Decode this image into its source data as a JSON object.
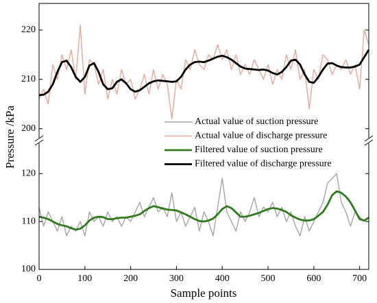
{
  "chart_data": {
    "type": "line",
    "xlabel": "Sample points",
    "ylabel": "Pressure /kPa",
    "xlim": [
      0,
      720
    ],
    "xticks": [
      0,
      100,
      200,
      300,
      400,
      500,
      600,
      700
    ],
    "ylim": [
      100,
      126.9
    ],
    "yticks": [
      100,
      110,
      120
    ],
    "y2lim": [
      197.6,
      225.4
    ],
    "y2ticks": [
      200,
      210,
      220
    ],
    "legend": "right",
    "x": [
      0,
      10,
      20,
      30,
      40,
      50,
      60,
      70,
      80,
      90,
      100,
      110,
      120,
      130,
      140,
      150,
      160,
      170,
      180,
      190,
      200,
      210,
      220,
      230,
      240,
      250,
      260,
      270,
      280,
      290,
      300,
      310,
      320,
      330,
      340,
      350,
      360,
      370,
      380,
      390,
      400,
      410,
      420,
      430,
      440,
      450,
      460,
      470,
      480,
      490,
      500,
      510,
      520,
      530,
      540,
      550,
      560,
      570,
      580,
      590,
      600,
      610,
      620,
      630,
      640,
      650,
      660,
      670,
      680,
      690,
      700,
      710,
      720
    ],
    "series": [
      {
        "name": "Actual value of suction pressure",
        "color": "#a3a3a3",
        "width": 1.4,
        "values": [
          113,
          109,
          112,
          110,
          108,
          111,
          107,
          109,
          108,
          110,
          107,
          112,
          110,
          111,
          109,
          112,
          110,
          111,
          109,
          111,
          110,
          112,
          114,
          111,
          113,
          115,
          112,
          113,
          111,
          116,
          110,
          112,
          109,
          111,
          113,
          108,
          112,
          110,
          107,
          113,
          119,
          112,
          110,
          108,
          112,
          110,
          112,
          115,
          111,
          113,
          112,
          114,
          111,
          113,
          110,
          112,
          109,
          107,
          111,
          108,
          110,
          112,
          114,
          118,
          119,
          120,
          114,
          112,
          109,
          112,
          111,
          110,
          111
        ]
      },
      {
        "name": "Actual value of discharge pressure",
        "color": "#e2a99b",
        "width": 1.4,
        "axis": "y2",
        "values": [
          206,
          208,
          205,
          213,
          210,
          215,
          212,
          216,
          210,
          221,
          207,
          214,
          213,
          209,
          212,
          206,
          210,
          207,
          212,
          209,
          210,
          206,
          208,
          211,
          207,
          212,
          208,
          211,
          209,
          202,
          210,
          208,
          214,
          212,
          216,
          213,
          212,
          215,
          214,
          217,
          214,
          216,
          212,
          215,
          211,
          213,
          211,
          214,
          212,
          210,
          213,
          209,
          212,
          210,
          215,
          212,
          216,
          210,
          212,
          204,
          212,
          210,
          215,
          214,
          211,
          213,
          212,
          214,
          211,
          213,
          208,
          220,
          217
        ]
      },
      {
        "name": "Filtered value of suction pressure",
        "color": "#2f7a1c",
        "width": 2.8,
        "values": [
          111,
          110.8,
          110.5,
          110,
          109.5,
          109.2,
          109,
          108.6,
          108.3,
          108.5,
          109.2,
          110.2,
          110.8,
          111,
          110.9,
          110.5,
          110.5,
          110.7,
          110.8,
          110.8,
          111,
          111.2,
          111.5,
          112.2,
          112.8,
          113.2,
          113,
          112.7,
          112.5,
          112.4,
          112.3,
          111.9,
          111.5,
          111,
          110.5,
          110.1,
          110,
          110.2,
          110.6,
          111.5,
          112.6,
          113.2,
          112.8,
          111.9,
          111,
          111,
          111.2,
          111.5,
          111.8,
          112.2,
          112.6,
          112.8,
          112.7,
          112.4,
          112,
          111.3,
          110.8,
          110.4,
          110.2,
          110.2,
          110.5,
          111.2,
          112,
          113.5,
          115.5,
          116.3,
          116,
          115.2,
          114,
          112.3,
          110.5,
          110.2,
          110.8
        ]
      },
      {
        "name": "Filtered value of discharge pressure",
        "color": "#000000",
        "width": 2.8,
        "axis": "y2",
        "values": [
          206.8,
          206.9,
          207.5,
          209,
          211.5,
          213.5,
          213.8,
          212.5,
          210.5,
          209.5,
          210.5,
          212.8,
          213.3,
          211.5,
          209,
          208,
          208.2,
          209.5,
          210,
          209.2,
          208,
          207.5,
          207.8,
          208.5,
          209.2,
          209.6,
          209.8,
          209.7,
          209.6,
          209.5,
          209.6,
          210.5,
          212,
          213,
          213.5,
          213.6,
          213.5,
          213.8,
          214.2,
          214.6,
          214.8,
          214.5,
          214,
          213.3,
          212.6,
          212.2,
          212.1,
          212,
          211.9,
          212,
          211.8,
          211.3,
          211,
          211.5,
          212.5,
          213.8,
          214,
          213,
          211,
          209.5,
          209.3,
          210.5,
          212,
          213.2,
          213.3,
          212.8,
          212.5,
          212.4,
          212.4,
          212.6,
          213,
          214.5,
          216
        ]
      }
    ]
  }
}
